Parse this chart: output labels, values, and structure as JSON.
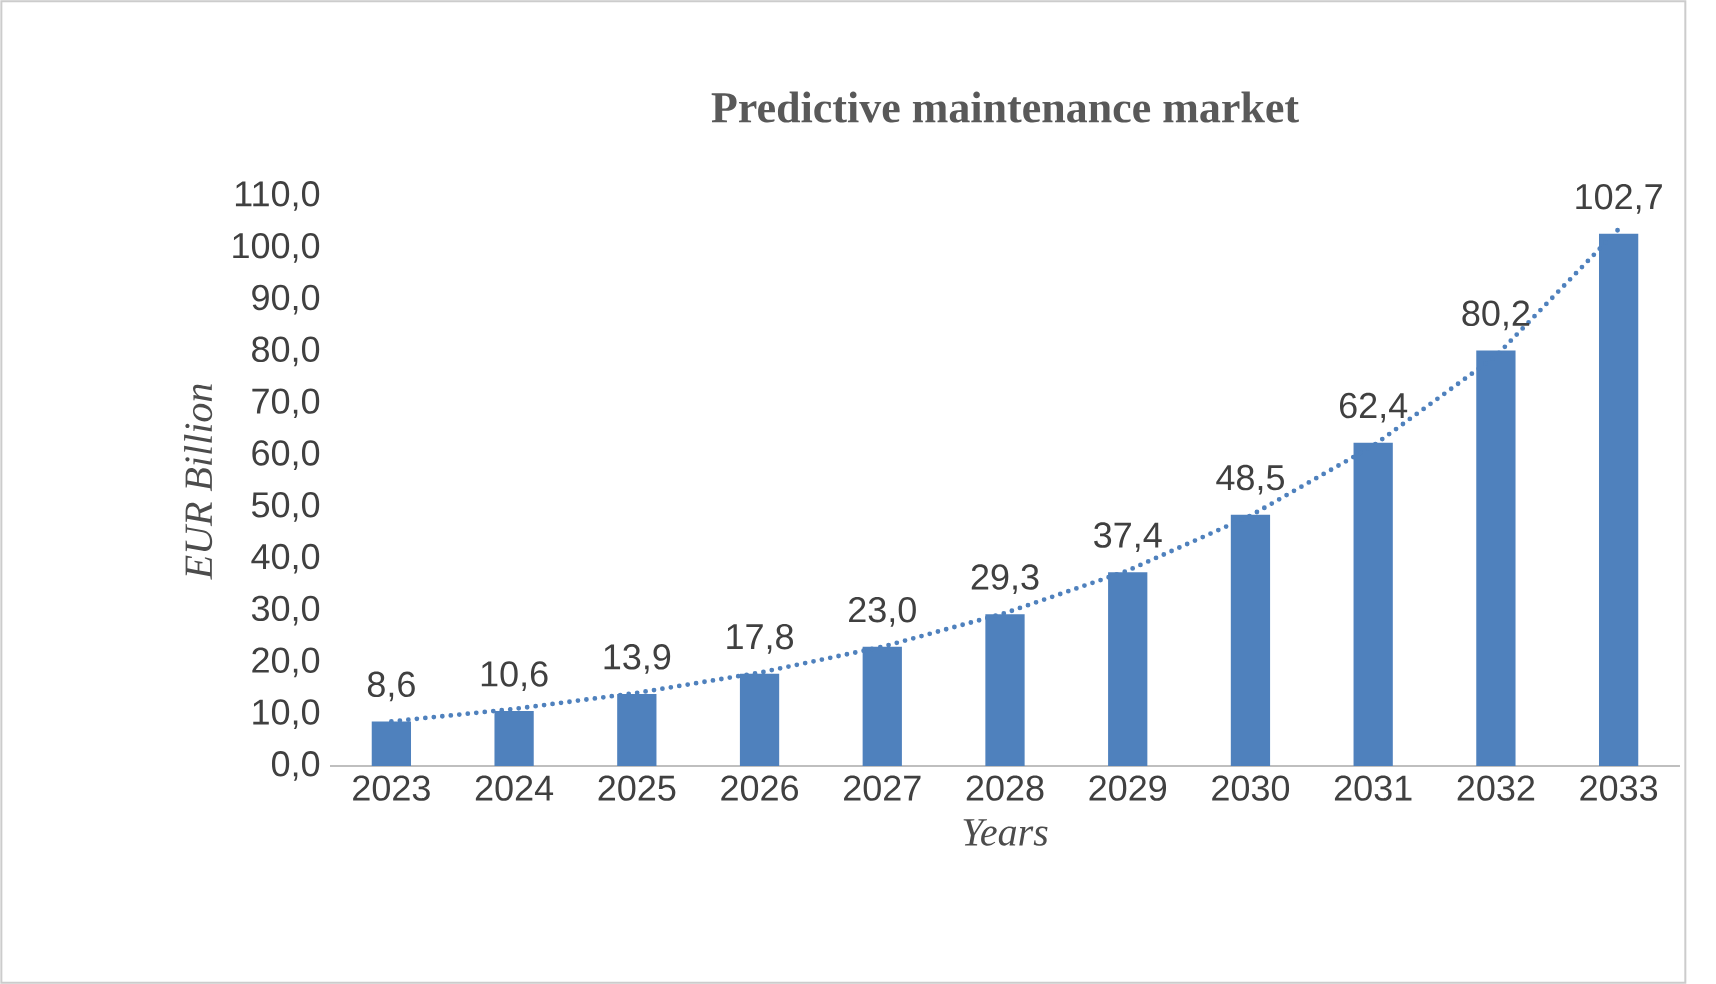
{
  "chart_data": {
    "type": "bar",
    "title": "Predictive maintenance market",
    "xlabel": "Years",
    "ylabel": "EUR Billion",
    "categories": [
      "2023",
      "2024",
      "2025",
      "2026",
      "2027",
      "2028",
      "2029",
      "2030",
      "2031",
      "2032",
      "2033"
    ],
    "series": [
      {
        "color": "#4f81bd",
        "values": [
          8.6,
          10.6,
          13.9,
          17.8,
          23.0,
          29.3,
          37.4,
          48.5,
          62.4,
          80.2,
          102.7
        ],
        "value_labels": [
          "8,6",
          "10,6",
          "13,9",
          "17,8",
          "23,0",
          "29,3",
          "37,4",
          "48,5",
          "62,4",
          "80,2",
          "102,7"
        ]
      },
      {
        "type": "line",
        "color": "#4f81bd",
        "line_style": "dotted",
        "marker": "none",
        "values": [
          8.6,
          11.0,
          14.1,
          18.0,
          23.0,
          29.5,
          37.7,
          48.3,
          61.8,
          79.1,
          103.6
        ]
      }
    ],
    "ylim": [
      0,
      110
    ],
    "yticks": [
      {
        "value": 0,
        "label": "0,0"
      },
      {
        "value": 10,
        "label": "10,0"
      },
      {
        "value": 20,
        "label": "20,0"
      },
      {
        "value": 30,
        "label": "30,0"
      },
      {
        "value": 40,
        "label": "40,0"
      },
      {
        "value": 50,
        "label": "50,0"
      },
      {
        "value": 60,
        "label": "60,0"
      },
      {
        "value": 70,
        "label": "70,0"
      },
      {
        "value": 80,
        "label": "80,0"
      },
      {
        "value": 90,
        "label": "90,0"
      },
      {
        "value": 100,
        "label": "100,0"
      },
      {
        "value": 110,
        "label": "110,0"
      }
    ],
    "grid": false,
    "legend": false
  }
}
